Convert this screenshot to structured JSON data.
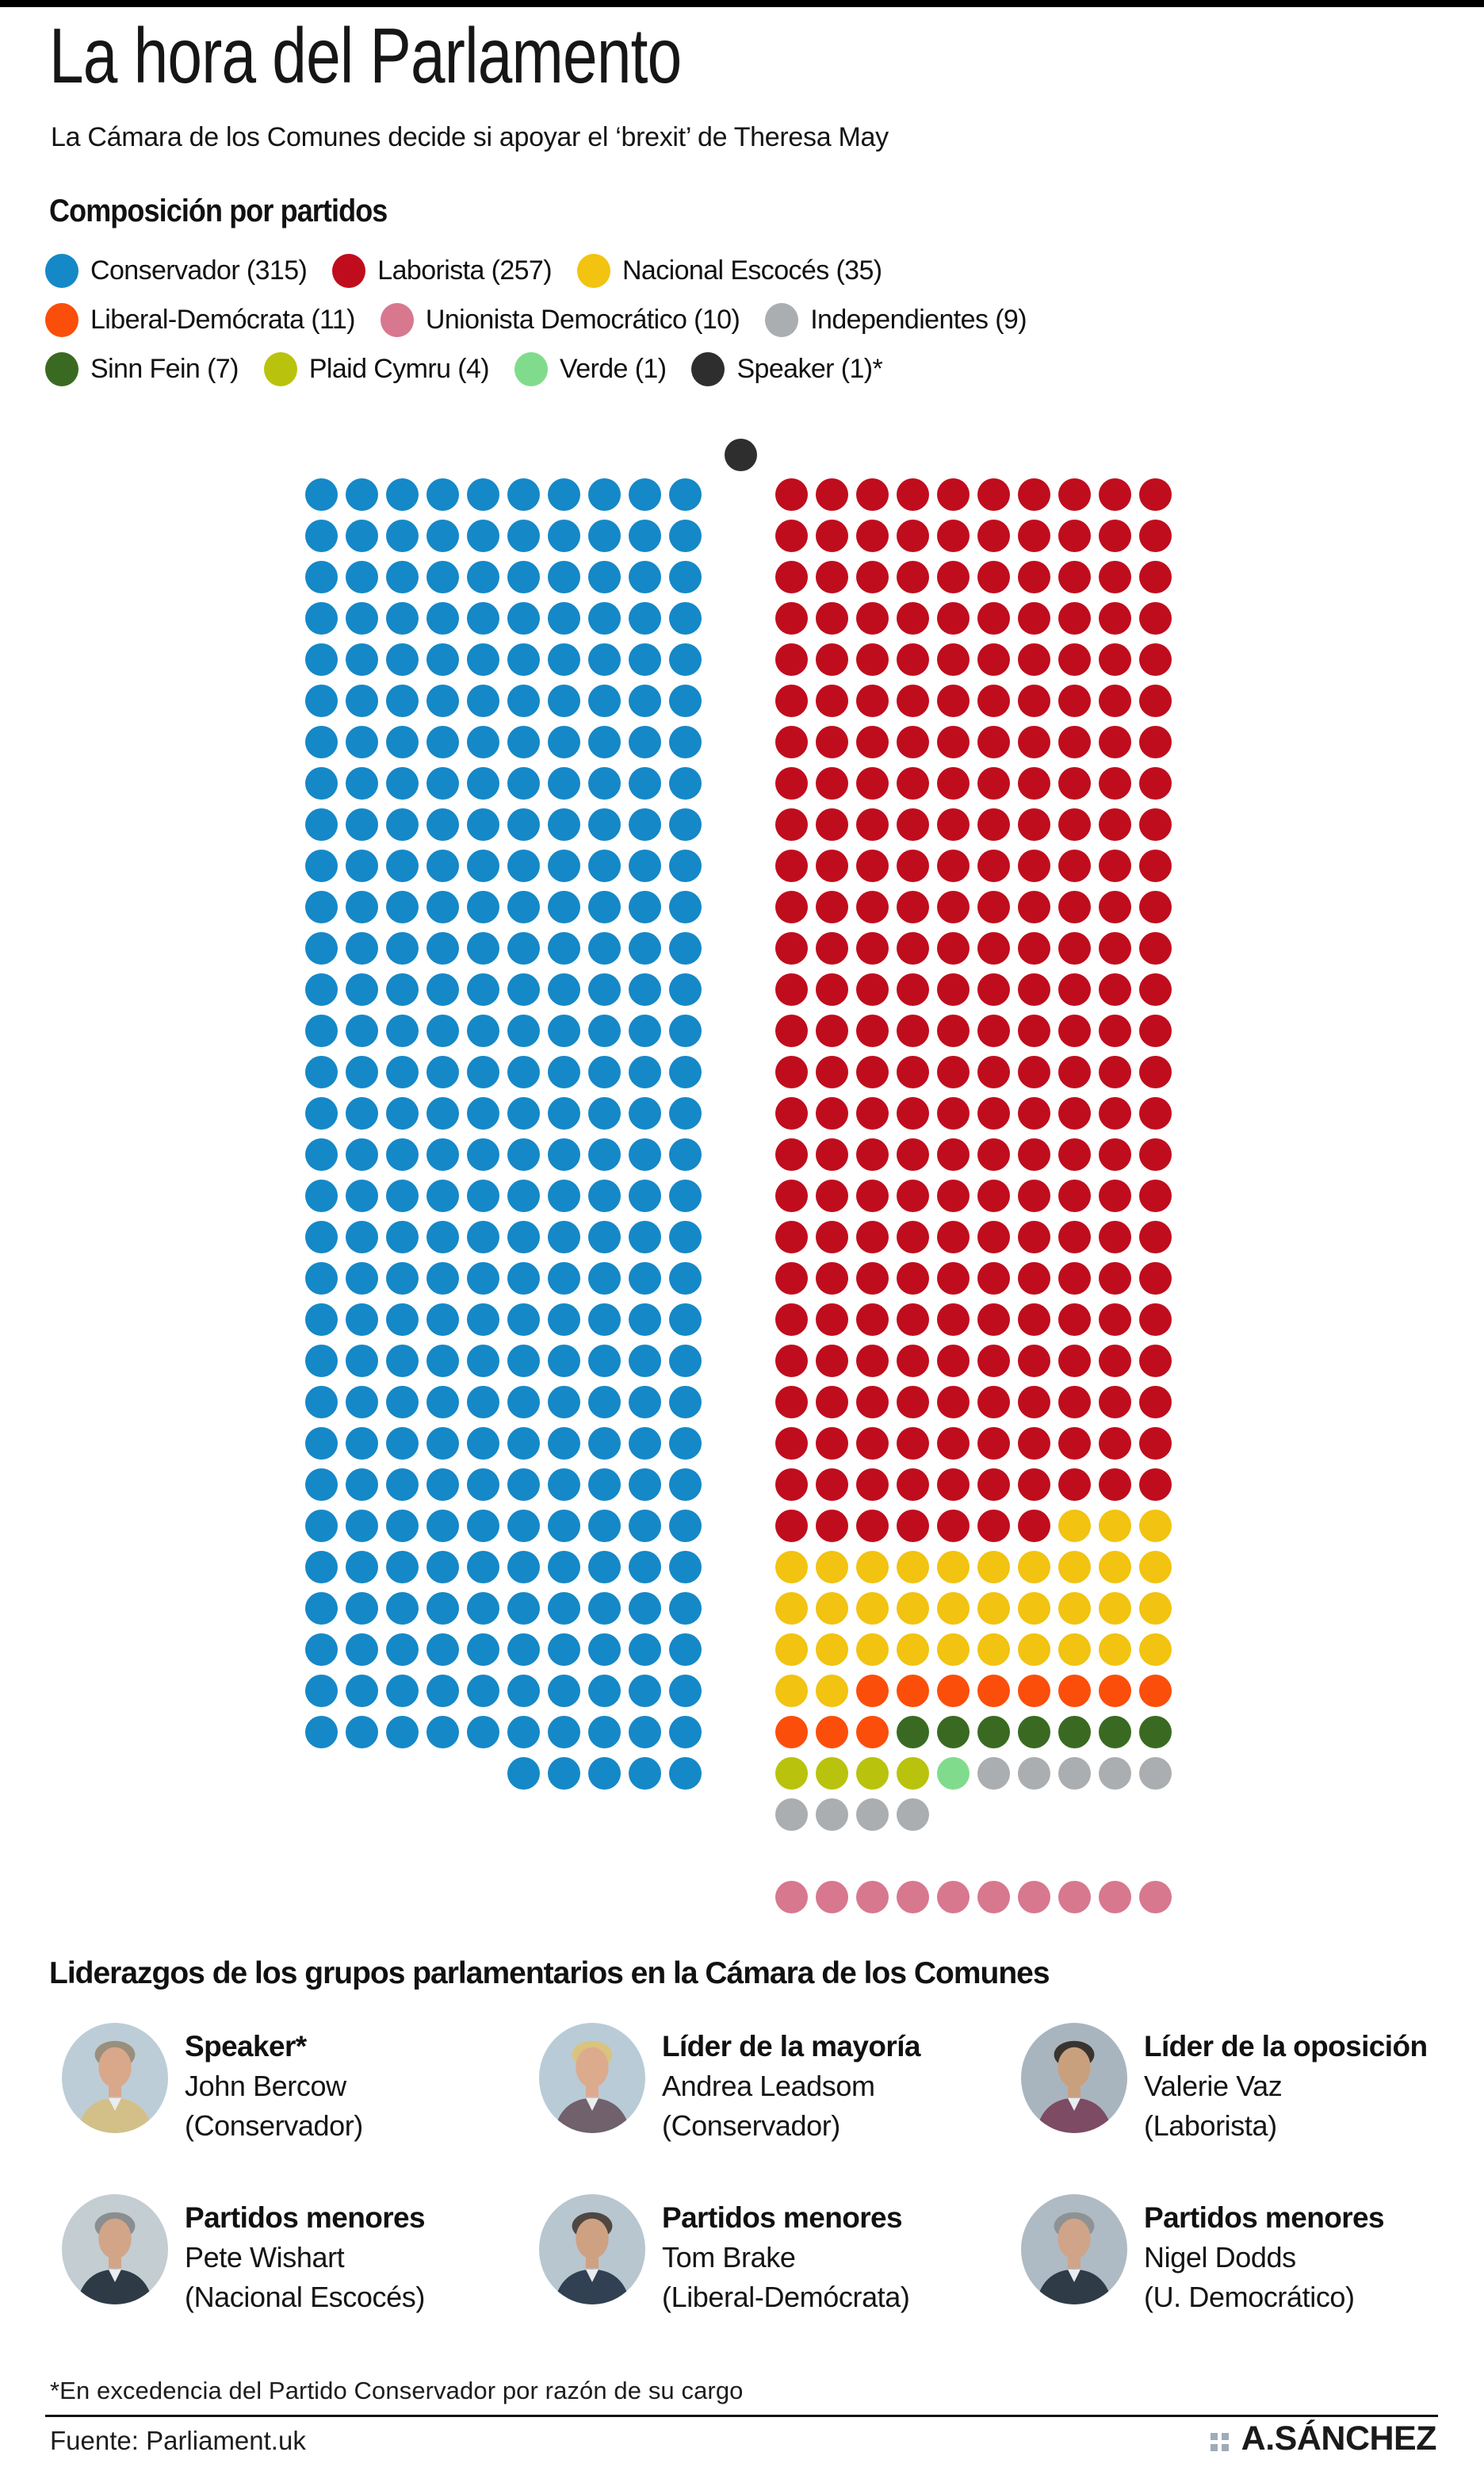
{
  "header": {
    "title": "La hora del Parlamento",
    "subtitle": "La Cámara de los Comunes decide si apoyar el ‘brexit’ de Theresa May"
  },
  "legend": {
    "heading": "Composición por partidos",
    "rows": [
      [
        {
          "party": "conservador",
          "display": "Conservador (315)"
        },
        {
          "party": "laborista",
          "display": "Laborista (257)"
        },
        {
          "party": "nacional_escoces",
          "display": "Nacional Escocés (35)"
        }
      ],
      [
        {
          "party": "liberal_democrata",
          "display": "Liberal-Demócrata (11)"
        },
        {
          "party": "unionista_democratico",
          "display": "Unionista Democrático (10)"
        },
        {
          "party": "independientes",
          "display": "Independientes (9)"
        }
      ],
      [
        {
          "party": "sinn_fein",
          "display": "Sinn Fein (7)"
        },
        {
          "party": "plaid_cymru",
          "display": "Plaid Cymru (4)"
        },
        {
          "party": "verde",
          "display": "Verde (1)"
        },
        {
          "party": "speaker",
          "display": "Speaker (1)*"
        }
      ]
    ]
  },
  "chart_data": {
    "type": "waffle",
    "title": "Composición por partidos",
    "subtitle_context": "Cámara de los Comunes del Reino Unido",
    "total_seats": 650,
    "columns_per_block": 10,
    "legend_position": "top",
    "series": [
      {
        "name": "Conservador",
        "value": 315,
        "color": "#1588c8"
      },
      {
        "name": "Laborista",
        "value": 257,
        "color": "#c00d1d"
      },
      {
        "name": "Nacional Escocés",
        "value": 35,
        "color": "#f2c310"
      },
      {
        "name": "Liberal-Demócrata",
        "value": 11,
        "color": "#fb4e0b"
      },
      {
        "name": "Unionista Democrático",
        "value": 10,
        "color": "#d7788f"
      },
      {
        "name": "Independientes",
        "value": 9,
        "color": "#abaeb0"
      },
      {
        "name": "Sinn Fein",
        "value": 7,
        "color": "#3a6a21"
      },
      {
        "name": "Plaid Cymru",
        "value": 4,
        "color": "#b9c30d"
      },
      {
        "name": "Verde",
        "value": 1,
        "color": "#80dc8c"
      },
      {
        "name": "Speaker",
        "value": 1,
        "color": "#2e2e2e"
      }
    ],
    "party_colors": {
      "conservador": "#1588c8",
      "laborista": "#c00d1d",
      "nacional_escoces": "#f2c310",
      "liberal_democrata": "#fb4e0b",
      "unionista_democratico": "#d7788f",
      "independientes": "#abaeb0",
      "sinn_fein": "#3a6a21",
      "plaid_cymru": "#b9c30d",
      "verde": "#80dc8c",
      "speaker": "#2e2e2e",
      "empty": "transparent"
    },
    "layout_hint": "Two opposing blocks of 10 columns (government left, opposition right); black Speaker dot centered above the aisle; Unionista Democrático row detached below the right block",
    "left_block": {
      "full_rows": {
        "repeat": 31,
        "segments": [
          [
            "conservador",
            10
          ]
        ]
      },
      "last_row": {
        "segments": [
          [
            "empty",
            5
          ],
          [
            "conservador",
            5
          ]
        ]
      }
    },
    "right_block": {
      "rows": [
        {
          "repeat": 25,
          "segments": [
            [
              "laborista",
              10
            ]
          ]
        },
        {
          "repeat": 1,
          "segments": [
            [
              "laborista",
              7
            ],
            [
              "nacional_escoces",
              3
            ]
          ]
        },
        {
          "repeat": 3,
          "segments": [
            [
              "nacional_escoces",
              10
            ]
          ]
        },
        {
          "repeat": 1,
          "segments": [
            [
              "nacional_escoces",
              2
            ],
            [
              "liberal_democrata",
              8
            ]
          ]
        },
        {
          "repeat": 1,
          "segments": [
            [
              "liberal_democrata",
              3
            ],
            [
              "sinn_fein",
              7
            ]
          ]
        },
        {
          "repeat": 1,
          "segments": [
            [
              "plaid_cymru",
              4
            ],
            [
              "verde",
              1
            ],
            [
              "independientes",
              5
            ]
          ]
        },
        {
          "repeat": 1,
          "segments": [
            [
              "independientes",
              4
            ]
          ]
        }
      ],
      "detached_row": {
        "gap_rows": 1,
        "segments": [
          [
            "unionista_democratico",
            10
          ]
        ]
      }
    },
    "speaker_dot": {
      "party": "speaker",
      "position": "above-aisle"
    }
  },
  "leaders": {
    "heading": "Liderazgos de los grupos parlamentarios en la Cámara de los Comunes",
    "cards": [
      {
        "role": "Speaker*",
        "name": "John Bercow",
        "party": "(Conservador)",
        "photo": {
          "bg": "#bccdd8",
          "hair": "#998f7c",
          "skin": "#d9a88a",
          "suit": "#d3c089"
        }
      },
      {
        "role": "Líder de la mayoría",
        "name": "Andrea Leadsom",
        "party": "(Conservador)",
        "photo": {
          "bg": "#b9cbd7",
          "hair": "#d9c37e",
          "skin": "#dcab8e",
          "suit": "#70616c"
        }
      },
      {
        "role": "Líder de la oposición",
        "name": "Valerie Vaz",
        "party": "(Laborista)",
        "photo": {
          "bg": "#a9b5be",
          "hair": "#3a332e",
          "skin": "#c9a07e",
          "suit": "#7d4b63"
        }
      },
      {
        "role": "Partidos menores",
        "name": "Pete Wishart",
        "party": "(Nacional Escocés)",
        "photo": {
          "bg": "#c3cdd2",
          "hair": "#8b8e90",
          "skin": "#d2a588",
          "suit": "#2e3a46"
        }
      },
      {
        "role": "Partidos menores",
        "name": "Tom Brake",
        "party": "(Liberal-Demócrata)",
        "photo": {
          "bg": "#b7c6cf",
          "hair": "#4e4742",
          "skin": "#cfa183",
          "suit": "#314052"
        }
      },
      {
        "role": "Partidos menores",
        "name": "Nigel Dodds",
        "party": "(U. Democrático)",
        "photo": {
          "bg": "#aebbc4",
          "hair": "#8f9294",
          "skin": "#d0a488",
          "suit": "#2f3b47"
        }
      }
    ]
  },
  "footer": {
    "footnote": "*En excedencia del Partido Conservador por razón de su cargo",
    "source": "Fuente: Parliament.uk",
    "credit": "A.SÁNCHEZ"
  }
}
